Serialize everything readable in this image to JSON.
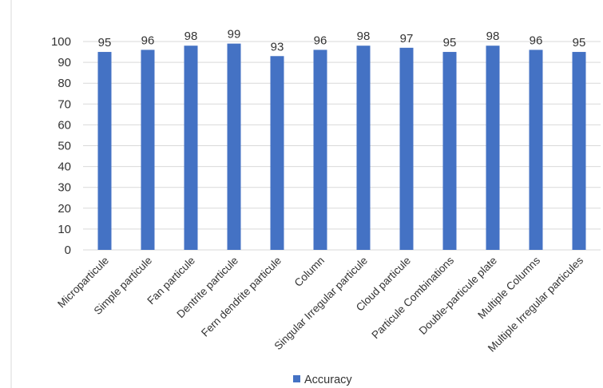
{
  "chart_data": {
    "type": "bar",
    "categories": [
      "Microparticule",
      "Simple particule",
      "Fan particule",
      "Dentrite particule",
      "Fern dendrite particule",
      "Column",
      "Singular Irregular particule",
      "Cloud particule",
      "Particule Combinations",
      "Double-particule plate",
      "Multiple Columns",
      "Multiple Irregular particules"
    ],
    "series": [
      {
        "name": "Accuracy",
        "values": [
          95,
          96,
          98,
          99,
          93,
          96,
          98,
          97,
          95,
          98,
          96,
          95
        ],
        "color": "#4472c4"
      }
    ],
    "ylim": [
      0,
      100
    ],
    "yticks": [
      0,
      10,
      20,
      30,
      40,
      50,
      60,
      70,
      80,
      90,
      100
    ],
    "grid": true,
    "data_labels": true,
    "legend_position": "bottom"
  }
}
